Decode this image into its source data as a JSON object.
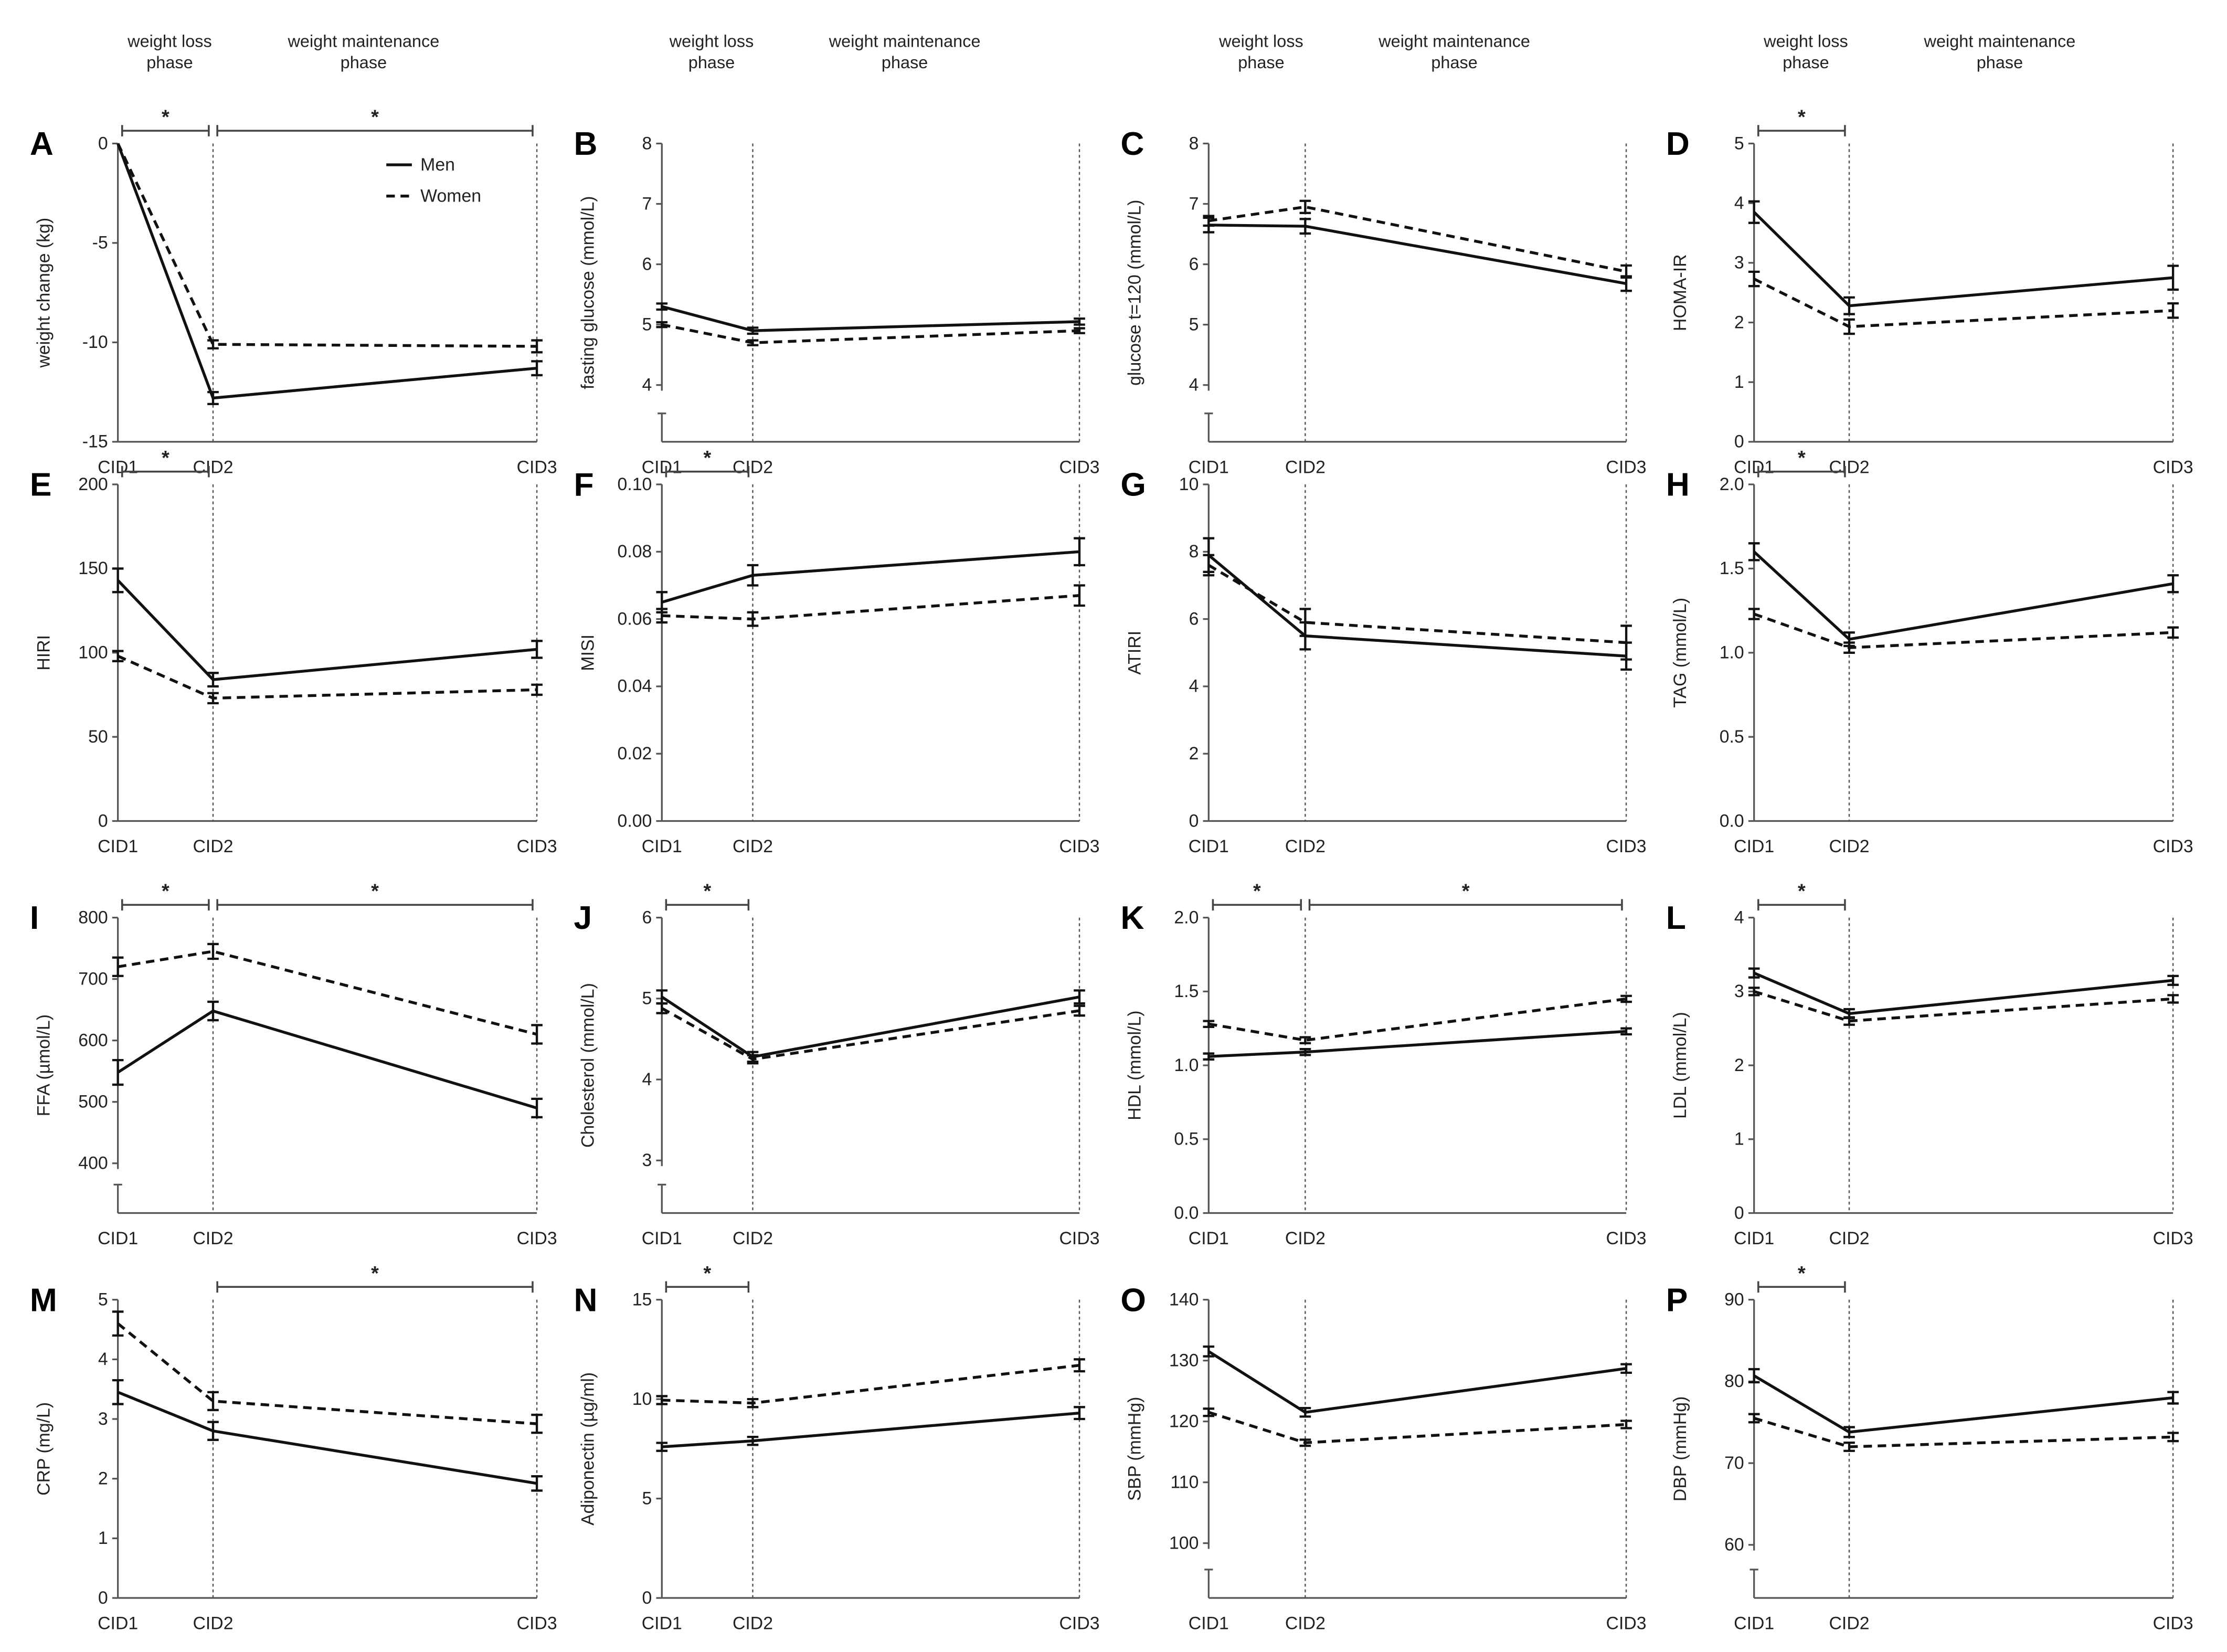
{
  "phase_labels": {
    "loss_line1": "weight loss",
    "loss_line2": "phase",
    "maint_line1": "weight maintenance",
    "maint_line2": "phase"
  },
  "legend": {
    "men": "Men",
    "women": "Women"
  },
  "chart_data": [
    {
      "type": "line",
      "panel": "A",
      "ylabel": "weight change (kg)",
      "categories": [
        "CID1",
        "CID2",
        "CID3"
      ],
      "ylim": [
        -15,
        0
      ],
      "ticks": [
        "0",
        "-5",
        "-10",
        "-15"
      ],
      "tick_values": [
        0,
        -5,
        -10,
        -15
      ],
      "axis_break": false,
      "legend": "top-right",
      "series": [
        {
          "name": "Men",
          "values": [
            0,
            -12.8,
            -11.3
          ],
          "err": [
            0,
            0.3,
            0.35
          ]
        },
        {
          "name": "Women",
          "values": [
            0,
            -10.1,
            -10.2
          ],
          "err": [
            0,
            0.2,
            0.3
          ]
        }
      ],
      "significance": [
        [
          "CID1",
          "CID2"
        ],
        [
          "CID2",
          "CID3"
        ]
      ]
    },
    {
      "type": "line",
      "panel": "B",
      "ylabel": "fasting glucose (mmol/L)",
      "categories": [
        "CID1",
        "CID2",
        "CID3"
      ],
      "ylim": [
        3.06,
        8
      ],
      "ticks": [
        "8",
        "7",
        "6",
        "5",
        "4"
      ],
      "tick_values": [
        8,
        7,
        6,
        5,
        4
      ],
      "axis_break": true,
      "series": [
        {
          "name": "Men",
          "values": [
            5.3,
            4.9,
            5.05
          ],
          "err": [
            0.05,
            0.05,
            0.05
          ]
        },
        {
          "name": "Women",
          "values": [
            5.0,
            4.7,
            4.9
          ],
          "err": [
            0.04,
            0.04,
            0.04
          ]
        }
      ],
      "significance": []
    },
    {
      "type": "line",
      "panel": "C",
      "ylabel": "glucose t=120 (mmol/L)",
      "categories": [
        "CID1",
        "CID2",
        "CID3"
      ],
      "ylim": [
        3.06,
        8
      ],
      "ticks": [
        "8",
        "7",
        "6",
        "5",
        "4"
      ],
      "tick_values": [
        8,
        7,
        6,
        5,
        4
      ],
      "axis_break": true,
      "series": [
        {
          "name": "Men",
          "values": [
            6.65,
            6.63,
            5.68
          ],
          "err": [
            0.12,
            0.12,
            0.12
          ]
        },
        {
          "name": "Women",
          "values": [
            6.72,
            6.95,
            5.88
          ],
          "err": [
            0.08,
            0.1,
            0.1
          ]
        }
      ],
      "significance": []
    },
    {
      "type": "line",
      "panel": "D",
      "ylabel": "HOMA-IR",
      "categories": [
        "CID1",
        "CID2",
        "CID3"
      ],
      "ylim": [
        0,
        5
      ],
      "ticks": [
        "5",
        "4",
        "3",
        "2",
        "1",
        "0"
      ],
      "tick_values": [
        5,
        4,
        3,
        2,
        1,
        0
      ],
      "axis_break": false,
      "series": [
        {
          "name": "Men",
          "values": [
            3.85,
            2.28,
            2.75
          ],
          "err": [
            0.18,
            0.14,
            0.2
          ]
        },
        {
          "name": "Women",
          "values": [
            2.73,
            1.93,
            2.2
          ],
          "err": [
            0.12,
            0.12,
            0.12
          ]
        }
      ],
      "significance": [
        [
          "CID1",
          "CID2"
        ]
      ]
    },
    {
      "type": "line",
      "panel": "E",
      "ylabel": "HIRI",
      "categories": [
        "CID1",
        "CID2",
        "CID3"
      ],
      "ylim": [
        0,
        200
      ],
      "ticks": [
        "200",
        "150",
        "100",
        "50",
        "0"
      ],
      "tick_values": [
        200,
        150,
        100,
        50,
        0
      ],
      "axis_break": false,
      "series": [
        {
          "name": "Men",
          "values": [
            143,
            84,
            102
          ],
          "err": [
            7,
            4,
            5
          ]
        },
        {
          "name": "Women",
          "values": [
            98,
            73,
            78
          ],
          "err": [
            3,
            3,
            3
          ]
        }
      ],
      "significance": [
        [
          "CID1",
          "CID2"
        ]
      ]
    },
    {
      "type": "line",
      "panel": "F",
      "ylabel": "MISI",
      "categories": [
        "CID1",
        "CID2",
        "CID3"
      ],
      "ylim": [
        0,
        0.1
      ],
      "ticks": [
        "0.10",
        "0.08",
        "0.06",
        "0.04",
        "0.02",
        "0.00"
      ],
      "tick_values": [
        0.1,
        0.08,
        0.06,
        0.04,
        0.02,
        0
      ],
      "axis_break": false,
      "series": [
        {
          "name": "Men",
          "values": [
            0.065,
            0.073,
            0.08
          ],
          "err": [
            0.003,
            0.003,
            0.004
          ]
        },
        {
          "name": "Women",
          "values": [
            0.061,
            0.06,
            0.067
          ],
          "err": [
            0.002,
            0.002,
            0.003
          ]
        }
      ],
      "significance": [
        [
          "CID1",
          "CID2"
        ]
      ]
    },
    {
      "type": "line",
      "panel": "G",
      "ylabel": "ATIRI",
      "categories": [
        "CID1",
        "CID2",
        "CID3"
      ],
      "ylim": [
        0,
        10
      ],
      "ticks": [
        "10",
        "8",
        "6",
        "4",
        "2",
        "0"
      ],
      "tick_values": [
        10,
        8,
        6,
        4,
        2,
        0
      ],
      "axis_break": false,
      "series": [
        {
          "name": "Men",
          "values": [
            7.9,
            5.5,
            4.9
          ],
          "err": [
            0.5,
            0.4,
            0.4
          ]
        },
        {
          "name": "Women",
          "values": [
            7.6,
            5.9,
            5.3
          ],
          "err": [
            0.3,
            0.4,
            0.5
          ]
        }
      ],
      "significance": []
    },
    {
      "type": "line",
      "panel": "H",
      "ylabel": "TAG (mmol/L)",
      "categories": [
        "CID1",
        "CID2",
        "CID3"
      ],
      "ylim": [
        0,
        2
      ],
      "ticks": [
        "2.0",
        "1.5",
        "1.0",
        "0.5",
        "0.0"
      ],
      "tick_values": [
        2,
        1.5,
        1,
        0.5,
        0
      ],
      "axis_break": false,
      "series": [
        {
          "name": "Men",
          "values": [
            1.6,
            1.08,
            1.41
          ],
          "err": [
            0.05,
            0.04,
            0.05
          ]
        },
        {
          "name": "Women",
          "values": [
            1.23,
            1.03,
            1.12
          ],
          "err": [
            0.03,
            0.03,
            0.03
          ]
        }
      ],
      "significance": [
        [
          "CID1",
          "CID2"
        ]
      ]
    },
    {
      "type": "line",
      "panel": "I",
      "ylabel": "FFA (µmol/L)",
      "categories": [
        "CID1",
        "CID2",
        "CID3"
      ],
      "ylim": [
        319,
        800
      ],
      "ticks": [
        "800",
        "700",
        "600",
        "500",
        "400"
      ],
      "tick_values": [
        800,
        700,
        600,
        500,
        400
      ],
      "axis_break": true,
      "series": [
        {
          "name": "Men",
          "values": [
            548,
            648,
            490
          ],
          "err": [
            20,
            15,
            15
          ]
        },
        {
          "name": "Women",
          "values": [
            720,
            745,
            610
          ],
          "err": [
            15,
            12,
            15
          ]
        }
      ],
      "significance": [
        [
          "CID1",
          "CID2"
        ],
        [
          "CID2",
          "CID3"
        ]
      ]
    },
    {
      "type": "line",
      "panel": "J",
      "ylabel": "Cholesterol (mmol/L)",
      "categories": [
        "CID1",
        "CID2",
        "CID3"
      ],
      "ylim": [
        2.35,
        6
      ],
      "ticks": [
        "6",
        "5",
        "4",
        "3"
      ],
      "tick_values": [
        6,
        5,
        4,
        3
      ],
      "axis_break": true,
      "series": [
        {
          "name": "Men",
          "values": [
            5.02,
            4.28,
            5.02
          ],
          "err": [
            0.08,
            0.06,
            0.08
          ]
        },
        {
          "name": "Women",
          "values": [
            4.88,
            4.25,
            4.85
          ],
          "err": [
            0.06,
            0.05,
            0.06
          ]
        }
      ],
      "significance": [
        [
          "CID1",
          "CID2"
        ]
      ]
    },
    {
      "type": "line",
      "panel": "K",
      "ylabel": "HDL (mmol/L)",
      "categories": [
        "CID1",
        "CID2",
        "CID3"
      ],
      "ylim": [
        0,
        2
      ],
      "ticks": [
        "2.0",
        "1.5",
        "1.0",
        "0.5",
        "0.0"
      ],
      "tick_values": [
        2,
        1.5,
        1,
        0.5,
        0
      ],
      "axis_break": false,
      "series": [
        {
          "name": "Men",
          "values": [
            1.06,
            1.09,
            1.23
          ],
          "err": [
            0.02,
            0.02,
            0.02
          ]
        },
        {
          "name": "Women",
          "values": [
            1.28,
            1.17,
            1.45
          ],
          "err": [
            0.02,
            0.02,
            0.02
          ]
        }
      ],
      "significance": [
        [
          "CID1",
          "CID2"
        ],
        [
          "CID2",
          "CID3"
        ]
      ]
    },
    {
      "type": "line",
      "panel": "L",
      "ylabel": "LDL (mmol/L)",
      "categories": [
        "CID1",
        "CID2",
        "CID3"
      ],
      "ylim": [
        0,
        4
      ],
      "ticks": [
        "4",
        "3",
        "2",
        "1",
        "0"
      ],
      "tick_values": [
        4,
        3,
        2,
        1,
        0
      ],
      "axis_break": false,
      "series": [
        {
          "name": "Men",
          "values": [
            3.25,
            2.7,
            3.15
          ],
          "err": [
            0.06,
            0.06,
            0.06
          ]
        },
        {
          "name": "Women",
          "values": [
            3.0,
            2.6,
            2.9
          ],
          "err": [
            0.05,
            0.05,
            0.05
          ]
        }
      ],
      "significance": [
        [
          "CID1",
          "CID2"
        ]
      ]
    },
    {
      "type": "line",
      "panel": "M",
      "ylabel": "CRP (mg/L)",
      "categories": [
        "CID1",
        "CID2",
        "CID3"
      ],
      "ylim": [
        0,
        5
      ],
      "ticks": [
        "5",
        "4",
        "3",
        "2",
        "1",
        "0"
      ],
      "tick_values": [
        5,
        4,
        3,
        2,
        1,
        0
      ],
      "axis_break": false,
      "series": [
        {
          "name": "Men",
          "values": [
            3.45,
            2.8,
            1.92
          ],
          "err": [
            0.2,
            0.15,
            0.12
          ]
        },
        {
          "name": "Women",
          "values": [
            4.6,
            3.3,
            2.92
          ],
          "err": [
            0.2,
            0.15,
            0.15
          ]
        }
      ],
      "significance": [
        [
          "CID2",
          "CID3"
        ]
      ]
    },
    {
      "type": "line",
      "panel": "N",
      "ylabel": "Adiponectin (µg/ml)",
      "categories": [
        "CID1",
        "CID2",
        "CID3"
      ],
      "ylim": [
        0,
        15
      ],
      "ticks": [
        "15",
        "10",
        "5",
        "0"
      ],
      "tick_values": [
        15,
        10,
        5,
        0
      ],
      "axis_break": false,
      "series": [
        {
          "name": "Men",
          "values": [
            7.6,
            7.9,
            9.3
          ],
          "err": [
            0.2,
            0.2,
            0.3
          ]
        },
        {
          "name": "Women",
          "values": [
            9.95,
            9.8,
            11.7
          ],
          "err": [
            0.2,
            0.2,
            0.3
          ]
        }
      ],
      "significance": [
        [
          "CID1",
          "CID2"
        ]
      ]
    },
    {
      "type": "line",
      "panel": "O",
      "ylabel": "SBP (mmHg)",
      "categories": [
        "CID1",
        "CID2",
        "CID3"
      ],
      "ylim": [
        91,
        140
      ],
      "ticks": [
        "140",
        "130",
        "120",
        "110",
        "100"
      ],
      "tick_values": [
        140,
        130,
        120,
        110,
        100
      ],
      "axis_break": true,
      "series": [
        {
          "name": "Men",
          "values": [
            131.5,
            121.5,
            128.7
          ],
          "err": [
            0.8,
            0.7,
            0.7
          ]
        },
        {
          "name": "Women",
          "values": [
            121.5,
            116.5,
            119.5
          ],
          "err": [
            0.6,
            0.5,
            0.6
          ]
        }
      ],
      "significance": []
    },
    {
      "type": "line",
      "panel": "P",
      "ylabel": "DBP (mmHg)",
      "categories": [
        "CID1",
        "CID2",
        "CID3"
      ],
      "ylim": [
        53.5,
        90
      ],
      "ticks": [
        "90",
        "80",
        "70",
        "60"
      ],
      "tick_values": [
        90,
        80,
        70,
        60
      ],
      "axis_break": true,
      "series": [
        {
          "name": "Men",
          "values": [
            80.7,
            73.8,
            78
          ],
          "err": [
            0.8,
            0.6,
            0.7
          ]
        },
        {
          "name": "Women",
          "values": [
            75.5,
            72,
            73.2
          ],
          "err": [
            0.5,
            0.5,
            0.5
          ]
        }
      ],
      "significance": [
        [
          "CID1",
          "CID2"
        ]
      ]
    }
  ],
  "significance_marker": "*"
}
